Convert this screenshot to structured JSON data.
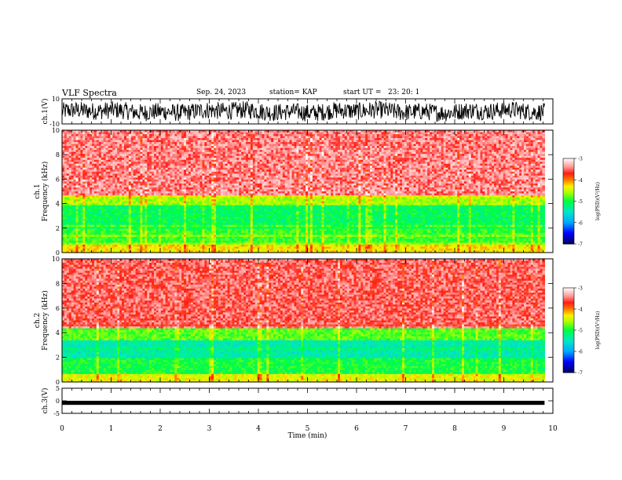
{
  "header": {
    "title": "VLF Spectra",
    "date": "Sep. 24, 2023",
    "station": "station= KAP",
    "start_ut": "start UT =   23: 20: 1"
  },
  "chart_data": [
    {
      "type": "line",
      "panel": "ch1-waveform",
      "ylabel": "ch.1(V)",
      "xlim": [
        0,
        10
      ],
      "ylim": [
        -10,
        10
      ],
      "yticks": [
        "10",
        "-10"
      ],
      "description_series_mean": 0,
      "series": [
        {
          "values_range": [
            -10,
            10
          ]
        }
      ]
    },
    {
      "type": "heatmap",
      "panel": "ch1-spectrogram",
      "ylabel": "ch.1\nFrequency (kHz)",
      "ylabel_lines": [
        "ch.1",
        "Frequency  (kHz)"
      ],
      "xlim": [
        0,
        10
      ],
      "ylim": [
        0,
        10
      ],
      "yticks": [
        "0",
        "2",
        "4",
        "6",
        "8",
        "10"
      ],
      "data_extent_x": [
        0,
        9.83
      ],
      "bands": [
        {
          "from": 0,
          "to": 0.6,
          "level": -4.3
        },
        {
          "from": 0.6,
          "to": 2.0,
          "level": -4.9
        },
        {
          "from": 2.0,
          "to": 3.8,
          "level": -5.1
        },
        {
          "from": 3.8,
          "to": 4.6,
          "level": -4.6
        },
        {
          "from": 4.6,
          "to": 10,
          "level": -3.6
        }
      ],
      "colorbar": {
        "label": "log(PSD)(V²/Hz)",
        "ticks": [
          "-3",
          "-4",
          "-5",
          "-6",
          "-7"
        ],
        "range": [
          -7,
          -3
        ]
      }
    },
    {
      "type": "heatmap",
      "panel": "ch2-spectrogram",
      "ylabel": "ch.2\nFrequency (kHz)",
      "ylabel_lines": [
        "ch.2",
        "Frequency  (kHz)"
      ],
      "xlim": [
        0,
        10
      ],
      "ylim": [
        0,
        10
      ],
      "yticks": [
        "0",
        "2",
        "4",
        "6",
        "8",
        "10"
      ],
      "data_extent_x": [
        0,
        9.83
      ],
      "bands": [
        {
          "from": 0,
          "to": 0.6,
          "level": -4.4
        },
        {
          "from": 0.6,
          "to": 2.0,
          "level": -5.0
        },
        {
          "from": 2.0,
          "to": 3.4,
          "level": -5.4
        },
        {
          "from": 3.4,
          "to": 4.4,
          "level": -4.8
        },
        {
          "from": 4.4,
          "to": 10,
          "level": -3.7
        }
      ],
      "colorbar": {
        "label": "log(PSD)(V²/Hz)",
        "ticks": [
          "-3",
          "-4",
          "-5",
          "-6",
          "-7"
        ],
        "range": [
          -7,
          -3
        ]
      }
    },
    {
      "type": "line",
      "panel": "ch3-waveform",
      "ylabel": "ch.3(V)",
      "xlim": [
        0,
        10
      ],
      "ylim": [
        -5,
        5
      ],
      "yticks": [
        "5",
        "0",
        "-5"
      ],
      "series": [
        {
          "values_range": [
            -1,
            0
          ]
        }
      ]
    }
  ],
  "x_axis": {
    "label": "Time  (min)",
    "ticks": [
      "0",
      "1",
      "2",
      "3",
      "4",
      "5",
      "6",
      "7",
      "8",
      "9",
      "10"
    ]
  },
  "colors": {
    "waveform": "#000000",
    "colormap": [
      "#000060",
      "#0000ff",
      "#00c8ff",
      "#00ff40",
      "#c8ff00",
      "#ffff00",
      "#ff8000",
      "#ff0000",
      "#ffc8c8",
      "#ffffff"
    ]
  }
}
